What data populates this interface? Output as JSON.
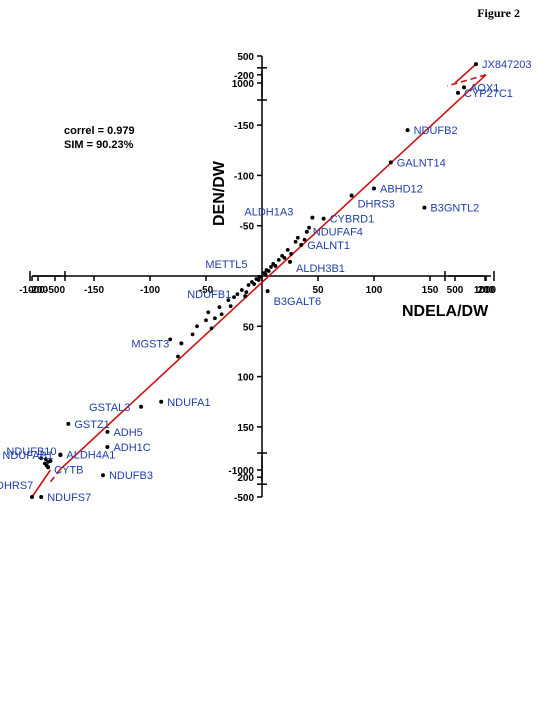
{
  "figure_label": "Figure 2",
  "stats": {
    "correl": "correl = 0.979",
    "sim": "SIM = 90.23%"
  },
  "chart_data": {
    "type": "scatter",
    "title": "",
    "xlabel": "NDELA/DW",
    "ylabel": "DEN/DW",
    "x_axis": {
      "segments": [
        {
          "range": [
            -1000,
            -500
          ],
          "ticks": [
            -1000,
            -500
          ]
        },
        {
          "range": [
            -200,
            200
          ],
          "ticks": [
            -200,
            -150,
            -100,
            -50,
            0,
            50,
            100,
            150,
            200
          ]
        },
        {
          "range": [
            500,
            1000
          ],
          "ticks": [
            500,
            1000
          ]
        }
      ],
      "tick_labels": [
        "-1000",
        "-500",
        "-200",
        "-150",
        "-100",
        "-50",
        "50",
        "100",
        "150",
        "200",
        "500",
        "1000"
      ]
    },
    "y_axis": {
      "segments": [
        {
          "range": [
            500,
            1000
          ],
          "ticks": [
            500,
            1000
          ]
        },
        {
          "range": [
            -200,
            200
          ],
          "ticks": [
            -200,
            -150,
            -100,
            -50,
            0,
            50,
            100,
            150,
            200
          ]
        },
        {
          "range": [
            -1000,
            -500
          ],
          "ticks": [
            -1000,
            -500
          ]
        }
      ],
      "tick_labels": [
        "1000",
        "500",
        "200",
        "150",
        "100",
        "50",
        "-50",
        "-100",
        "-150",
        "-200",
        "-500",
        "-1000"
      ]
    },
    "correl": 0.979,
    "sim_percent": 90.23,
    "regression_line": {
      "color": "#cc1111",
      "dashed_between_segments": true
    },
    "labeled_points": [
      {
        "name": "JX847203",
        "x": 850,
        "y": 850
      },
      {
        "name": "AOX1",
        "x": 650,
        "y": 420
      },
      {
        "name": "CYP27C1",
        "x": 175,
        "y": 182
      },
      {
        "name": "NDUFB2",
        "x": 130,
        "y": 145
      },
      {
        "name": "GALNT14",
        "x": 115,
        "y": 113
      },
      {
        "name": "ABHD12",
        "x": 100,
        "y": 87
      },
      {
        "name": "DHRS3",
        "x": 80,
        "y": 80
      },
      {
        "name": "B3GNTL2",
        "x": 145,
        "y": 68
      },
      {
        "name": "ALDH1A3",
        "x": 45,
        "y": 58
      },
      {
        "name": "CYBRD1",
        "x": 55,
        "y": 57
      },
      {
        "name": "NDUFAF4",
        "x": 40,
        "y": 44
      },
      {
        "name": "GALNT1",
        "x": 35,
        "y": 31
      },
      {
        "name": "ALDH3B1",
        "x": 25,
        "y": 14
      },
      {
        "name": "METTL5",
        "x": 3,
        "y": 2
      },
      {
        "name": "NDUFB1",
        "x": -15,
        "y": -20
      },
      {
        "name": "B3GALT6",
        "x": 5,
        "y": -15
      },
      {
        "name": "MGST3",
        "x": -72,
        "y": -67
      },
      {
        "name": "GSTAL3",
        "x": -108,
        "y": -130
      },
      {
        "name": "NDUFA1",
        "x": -90,
        "y": -125
      },
      {
        "name": "GSTZ1",
        "x": -210,
        "y": -147
      },
      {
        "name": "ADH5",
        "x": -138,
        "y": -155
      },
      {
        "name": "ADH1C",
        "x": -138,
        "y": -170
      },
      {
        "name": "NDUFAB1",
        "x": -180,
        "y": -178
      },
      {
        "name": "NDUFB3",
        "x": -142,
        "y": -198
      },
      {
        "name": "ALDH4A1",
        "x": -180,
        "y": -216
      },
      {
        "name": "NDUFB10",
        "x": -600,
        "y": -330
      },
      {
        "name": "CYTB",
        "x": -650,
        "y": -450
      },
      {
        "name": "DHRS7",
        "x": -1000,
        "y": -1000
      },
      {
        "name": "NDUFS7",
        "x": -800,
        "y": -1000
      }
    ],
    "unlabeled_points": [
      [
        -62,
        -58
      ],
      [
        -50,
        -44
      ],
      [
        -48,
        -36
      ],
      [
        -42,
        -42
      ],
      [
        -38,
        -31
      ],
      [
        -36,
        -38
      ],
      [
        -30,
        -24
      ],
      [
        -28,
        -30
      ],
      [
        -25,
        -21
      ],
      [
        -22,
        -18
      ],
      [
        -18,
        -14
      ],
      [
        -14,
        -16
      ],
      [
        -12,
        -9
      ],
      [
        -9,
        -6
      ],
      [
        -7,
        -8
      ],
      [
        -5,
        -3
      ],
      [
        -3,
        -4
      ],
      [
        -2,
        -1
      ],
      [
        2,
        3
      ],
      [
        4,
        6
      ],
      [
        6,
        5
      ],
      [
        8,
        9
      ],
      [
        10,
        12
      ],
      [
        12,
        10
      ],
      [
        15,
        16
      ],
      [
        18,
        20
      ],
      [
        20,
        18
      ],
      [
        23,
        26
      ],
      [
        26,
        22
      ],
      [
        30,
        34
      ],
      [
        32,
        38
      ],
      [
        38,
        36
      ],
      [
        42,
        48
      ],
      [
        -75,
        -80
      ],
      [
        -82,
        -63
      ],
      [
        -58,
        -50
      ],
      [
        -45,
        -52
      ],
      [
        -700,
        -300
      ],
      [
        -720,
        -380
      ],
      [
        -650,
        -350
      ],
      [
        -800,
        -280
      ],
      [
        -680,
        -420
      ]
    ]
  }
}
